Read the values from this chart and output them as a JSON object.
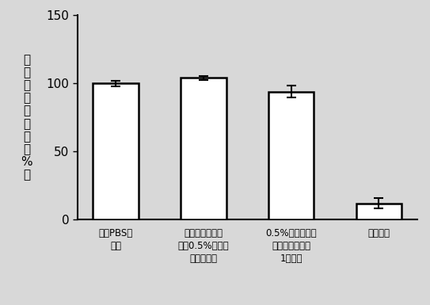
{
  "categories": [
    "空白PBS滴\n眼液",
    "未用地咗氯鐵修\n饰的0.5%姜黄素\n胶束滴眼液",
    "0.5%姜黄素胶束\n滴眼液（实施例\n1制备）",
    "地咗氯鐵"
  ],
  "values": [
    100.0,
    104.0,
    94.0,
    12.0
  ],
  "errors": [
    2.0,
    1.5,
    4.5,
    4.0
  ],
  "bar_color": "#ffffff",
  "bar_edgecolor": "#000000",
  "bar_width": 0.52,
  "ylabel_chars": [
    "细",
    "胞",
    "存",
    "活",
    "百",
    "分",
    "率",
    "（",
    "%",
    "）"
  ],
  "ylim": [
    0,
    150
  ],
  "yticks": [
    0,
    50,
    100,
    150
  ],
  "background_color": "#d8d8d8",
  "axes_background": "#d8d8d8",
  "errorbar_color": "#000000",
  "errorbar_capsize": 4,
  "errorbar_linewidth": 1.5,
  "bar_linewidth": 1.8,
  "xlabel_fontsize": 8.5,
  "ylabel_fontsize": 11,
  "ytick_fontsize": 11
}
